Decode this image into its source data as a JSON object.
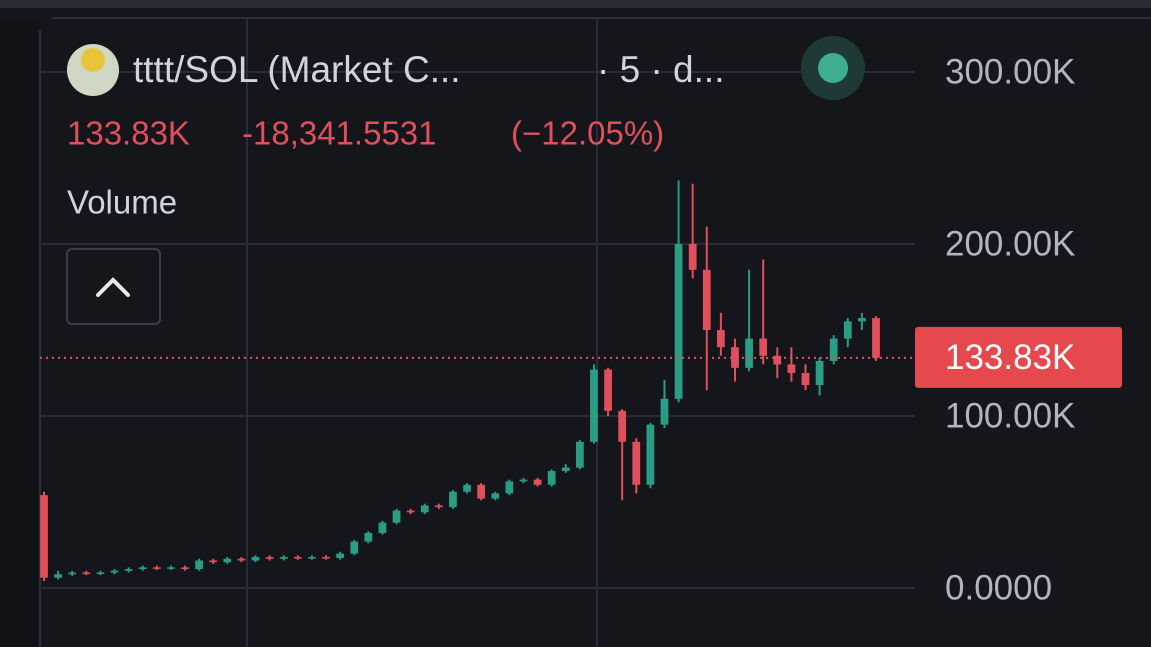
{
  "chart_data": {
    "type": "candlestick",
    "title": "tttt/SOL (Market C...",
    "interval": "· 5 · d...",
    "change": "-18,341.5531",
    "change_pct": "(−12.05%)",
    "legend_label": "Volume",
    "last_price": {
      "value": 133.83,
      "label": "133.83K"
    },
    "up_color": "#2b9c85",
    "down_color": "#e0505c",
    "ylim": [
      -34.3,
      331.4
    ],
    "yticks": [
      {
        "value": 0,
        "label": "0.0000"
      },
      {
        "value": 100,
        "label": "100.00K"
      },
      {
        "value": 200,
        "label": "200.00K"
      },
      {
        "value": 300,
        "label": "300.00K"
      }
    ],
    "grid": true,
    "candles": [
      {
        "open": 54,
        "high": 56,
        "low": 4,
        "close": 6
      },
      {
        "open": 6,
        "high": 10,
        "low": 5,
        "close": 8
      },
      {
        "open": 8,
        "high": 10,
        "low": 7,
        "close": 9
      },
      {
        "open": 9,
        "high": 10,
        "low": 7.5,
        "close": 8.5
      },
      {
        "open": 8.5,
        "high": 10,
        "low": 7.5,
        "close": 9
      },
      {
        "open": 9,
        "high": 11,
        "low": 8,
        "close": 10
      },
      {
        "open": 10,
        "high": 12,
        "low": 9,
        "close": 11
      },
      {
        "open": 11,
        "high": 13,
        "low": 10,
        "close": 12
      },
      {
        "open": 12,
        "high": 13,
        "low": 10.5,
        "close": 11.5
      },
      {
        "open": 11.5,
        "high": 13,
        "low": 10.5,
        "close": 12
      },
      {
        "open": 12,
        "high": 13,
        "low": 10,
        "close": 11
      },
      {
        "open": 11,
        "high": 17,
        "low": 10,
        "close": 16
      },
      {
        "open": 16,
        "high": 17,
        "low": 14,
        "close": 15
      },
      {
        "open": 15,
        "high": 18,
        "low": 14,
        "close": 17
      },
      {
        "open": 17,
        "high": 18,
        "low": 15,
        "close": 16
      },
      {
        "open": 16,
        "high": 19,
        "low": 15,
        "close": 18
      },
      {
        "open": 18,
        "high": 19,
        "low": 16,
        "close": 17
      },
      {
        "open": 17,
        "high": 19,
        "low": 16,
        "close": 18
      },
      {
        "open": 18,
        "high": 19,
        "low": 16.5,
        "close": 17.5
      },
      {
        "open": 17.5,
        "high": 19,
        "low": 16.5,
        "close": 18
      },
      {
        "open": 18,
        "high": 19,
        "low": 16.5,
        "close": 17.5
      },
      {
        "open": 17.5,
        "high": 21,
        "low": 16.5,
        "close": 20
      },
      {
        "open": 20,
        "high": 28,
        "low": 19,
        "close": 27
      },
      {
        "open": 27,
        "high": 33,
        "low": 26,
        "close": 32
      },
      {
        "open": 32,
        "high": 39,
        "low": 31,
        "close": 38
      },
      {
        "open": 38,
        "high": 46,
        "low": 37,
        "close": 45
      },
      {
        "open": 45,
        "high": 46,
        "low": 43,
        "close": 44
      },
      {
        "open": 44,
        "high": 49,
        "low": 43,
        "close": 48
      },
      {
        "open": 48,
        "high": 49,
        "low": 46,
        "close": 47
      },
      {
        "open": 47,
        "high": 57,
        "low": 46,
        "close": 56
      },
      {
        "open": 56,
        "high": 61,
        "low": 55,
        "close": 60
      },
      {
        "open": 60,
        "high": 61,
        "low": 51,
        "close": 52
      },
      {
        "open": 52,
        "high": 56,
        "low": 51,
        "close": 55
      },
      {
        "open": 55,
        "high": 63,
        "low": 54,
        "close": 62
      },
      {
        "open": 62,
        "high": 64,
        "low": 61,
        "close": 63
      },
      {
        "open": 63,
        "high": 64,
        "low": 59,
        "close": 60
      },
      {
        "open": 60,
        "high": 69,
        "low": 59,
        "close": 68
      },
      {
        "open": 68,
        "high": 72,
        "low": 67,
        "close": 70
      },
      {
        "open": 70,
        "high": 86,
        "low": 69,
        "close": 85
      },
      {
        "open": 85,
        "high": 130,
        "low": 84,
        "close": 127
      },
      {
        "open": 127,
        "high": 128,
        "low": 100,
        "close": 103
      },
      {
        "open": 103,
        "high": 104,
        "low": 51,
        "close": 85
      },
      {
        "open": 85,
        "high": 87,
        "low": 55,
        "close": 60
      },
      {
        "open": 60,
        "high": 96,
        "low": 58,
        "close": 95
      },
      {
        "open": 95,
        "high": 121,
        "low": 93,
        "close": 110
      },
      {
        "open": 110,
        "high": 237,
        "low": 108,
        "close": 200
      },
      {
        "open": 200,
        "high": 235,
        "low": 180,
        "close": 185
      },
      {
        "open": 185,
        "high": 210,
        "low": 115,
        "close": 150
      },
      {
        "open": 150,
        "high": 160,
        "low": 135,
        "close": 140
      },
      {
        "open": 140,
        "high": 145,
        "low": 120,
        "close": 128
      },
      {
        "open": 128,
        "high": 185,
        "low": 126,
        "close": 145
      },
      {
        "open": 145,
        "high": 191,
        "low": 130,
        "close": 135
      },
      {
        "open": 135,
        "high": 140,
        "low": 122,
        "close": 130
      },
      {
        "open": 130,
        "high": 140,
        "low": 120,
        "close": 125
      },
      {
        "open": 125,
        "high": 130,
        "low": 115,
        "close": 118
      },
      {
        "open": 118,
        "high": 134,
        "low": 112,
        "close": 132
      },
      {
        "open": 132,
        "high": 147,
        "low": 130,
        "close": 145
      },
      {
        "open": 145,
        "high": 157,
        "low": 140,
        "close": 155
      },
      {
        "open": 155,
        "high": 160,
        "low": 150,
        "close": 157
      },
      {
        "open": 157,
        "high": 158,
        "low": 132,
        "close": 133.83
      }
    ]
  }
}
